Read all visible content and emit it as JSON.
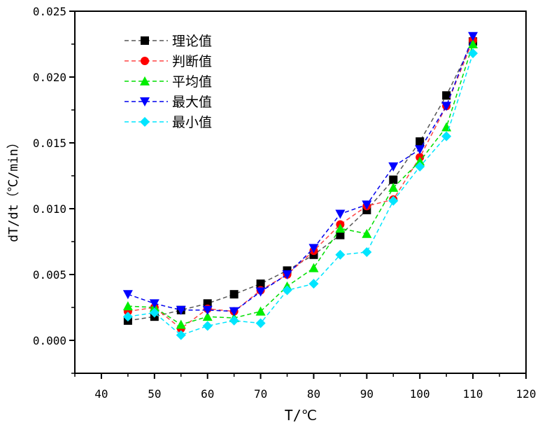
{
  "chart_data": {
    "type": "line",
    "title": "",
    "xlabel": "T/℃",
    "ylabel": "dT/dt（℃/min）",
    "xlim": [
      35,
      120
    ],
    "ylim": [
      -0.0025,
      0.025
    ],
    "xticks": [
      40,
      50,
      60,
      70,
      80,
      90,
      100,
      110,
      120
    ],
    "xtick_labels": [
      "40",
      "50",
      "60",
      "70",
      "80",
      "90",
      "100",
      "110",
      "120"
    ],
    "yticks": [
      0,
      0.005,
      0.01,
      0.015,
      0.02,
      0.025
    ],
    "ytick_labels": [
      "0.000",
      "0.005",
      "0.010",
      "0.015",
      "0.020",
      "0.025"
    ],
    "grid": false,
    "legend_position": "top-left",
    "x": [
      45,
      50,
      55,
      60,
      65,
      70,
      75,
      80,
      85,
      90,
      95,
      100,
      105,
      110
    ],
    "series": [
      {
        "name": "理论值",
        "color": "#000000",
        "line_color": "#555555",
        "marker": "square",
        "values": [
          0.0015,
          0.0018,
          0.0023,
          0.0028,
          0.0035,
          0.0043,
          0.0053,
          0.0065,
          0.008,
          0.0099,
          0.0122,
          0.0151,
          0.0186,
          0.0227
        ]
      },
      {
        "name": "判断值",
        "color": "#ff0000",
        "line_color": "#ff4444",
        "marker": "circle",
        "values": [
          0.0022,
          0.0025,
          0.0009,
          0.0024,
          0.0022,
          0.0038,
          0.005,
          0.0068,
          0.0088,
          0.0102,
          0.0107,
          0.0139,
          0.0178,
          0.0228
        ]
      },
      {
        "name": "平均值",
        "color": "#00ee00",
        "line_color": "#00dd00",
        "marker": "triangle-up",
        "values": [
          0.0026,
          0.0025,
          0.0012,
          0.0018,
          0.0017,
          0.0022,
          0.0041,
          0.0055,
          0.0085,
          0.0081,
          0.0116,
          0.0136,
          0.0162,
          0.0225
        ]
      },
      {
        "name": "最大值",
        "color": "#0000ff",
        "line_color": "#0000ee",
        "marker": "triangle-down",
        "values": [
          0.0035,
          0.0028,
          0.0023,
          0.0023,
          0.0022,
          0.0037,
          0.005,
          0.007,
          0.0096,
          0.0103,
          0.0132,
          0.0145,
          0.0178,
          0.0231
        ]
      },
      {
        "name": "最小值",
        "color": "#00e5ff",
        "line_color": "#00e5ff",
        "marker": "diamond",
        "values": [
          0.0018,
          0.0021,
          0.0004,
          0.0011,
          0.0015,
          0.0013,
          0.0038,
          0.0043,
          0.0065,
          0.0067,
          0.0106,
          0.0132,
          0.0155,
          0.0218
        ]
      }
    ]
  }
}
